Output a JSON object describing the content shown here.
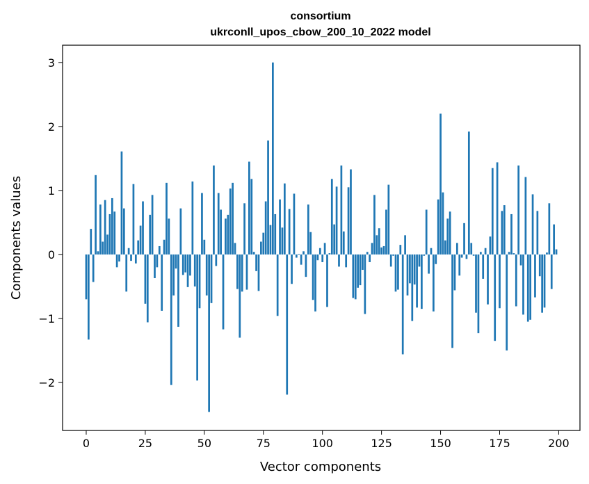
{
  "chart_data": {
    "type": "bar",
    "title_line1": "consortium",
    "title_line2": "ukrconll_upos_cbow_200_10_2022 model",
    "xlabel": "Vector components",
    "ylabel": "Components values",
    "xlim": [
      -10,
      209
    ],
    "ylim": [
      -2.75,
      3.27
    ],
    "xticks": [
      0,
      25,
      50,
      75,
      100,
      125,
      150,
      175,
      200
    ],
    "xtick_labels": [
      "0",
      "25",
      "50",
      "75",
      "100",
      "125",
      "150",
      "175",
      "200"
    ],
    "yticks": [
      -2,
      -1,
      0,
      1,
      2,
      3
    ],
    "ytick_labels": [
      "−2",
      "−1",
      "0",
      "1",
      "2",
      "3"
    ],
    "grid": false,
    "bar_color": "#1f77b4",
    "x": [
      0,
      1,
      2,
      3,
      4,
      5,
      6,
      7,
      8,
      9,
      10,
      11,
      12,
      13,
      14,
      15,
      16,
      17,
      18,
      19,
      20,
      21,
      22,
      23,
      24,
      25,
      26,
      27,
      28,
      29,
      30,
      31,
      32,
      33,
      34,
      35,
      36,
      37,
      38,
      39,
      40,
      41,
      42,
      43,
      44,
      45,
      46,
      47,
      48,
      49,
      50,
      51,
      52,
      53,
      54,
      55,
      56,
      57,
      58,
      59,
      60,
      61,
      62,
      63,
      64,
      65,
      66,
      67,
      68,
      69,
      70,
      71,
      72,
      73,
      74,
      75,
      76,
      77,
      78,
      79,
      80,
      81,
      82,
      83,
      84,
      85,
      86,
      87,
      88,
      89,
      90,
      91,
      92,
      93,
      94,
      95,
      96,
      97,
      98,
      99,
      100,
      101,
      102,
      103,
      104,
      105,
      106,
      107,
      108,
      109,
      110,
      111,
      112,
      113,
      114,
      115,
      116,
      117,
      118,
      119,
      120,
      121,
      122,
      123,
      124,
      125,
      126,
      127,
      128,
      129,
      130,
      131,
      132,
      133,
      134,
      135,
      136,
      137,
      138,
      139,
      140,
      141,
      142,
      143,
      144,
      145,
      146,
      147,
      148,
      149,
      150,
      151,
      152,
      153,
      154,
      155,
      156,
      157,
      158,
      159,
      160,
      161,
      162,
      163,
      164,
      165,
      166,
      167,
      168,
      169,
      170,
      171,
      172,
      173,
      174,
      175,
      176,
      177,
      178,
      179,
      180,
      181,
      182,
      183,
      184,
      185,
      186,
      187,
      188,
      189,
      190,
      191,
      192,
      193,
      194,
      195,
      196,
      197,
      198,
      199
    ],
    "values": [
      -0.7,
      -1.33,
      0.4,
      -0.43,
      1.24,
      0.05,
      0.78,
      0.2,
      0.85,
      0.31,
      0.63,
      0.88,
      0.67,
      -0.2,
      -0.11,
      1.61,
      0.72,
      -0.58,
      0.1,
      -0.1,
      1.1,
      -0.14,
      0.22,
      0.45,
      0.83,
      -0.77,
      -1.06,
      0.62,
      0.93,
      -0.37,
      -0.2,
      0.13,
      -0.88,
      0.23,
      1.12,
      0.56,
      -2.04,
      -0.64,
      -0.22,
      -1.13,
      0.72,
      -0.32,
      -0.28,
      -0.51,
      -0.33,
      1.14,
      -0.5,
      -1.97,
      -0.84,
      0.96,
      0.23,
      -0.64,
      -2.46,
      -0.76,
      1.39,
      -0.18,
      0.96,
      0.7,
      -1.17,
      0.56,
      0.62,
      1.03,
      1.12,
      0.18,
      -0.54,
      -1.3,
      -0.58,
      0.8,
      -0.55,
      1.45,
      1.18,
      0.04,
      -0.26,
      -0.57,
      0.2,
      0.34,
      0.83,
      1.78,
      0.46,
      3.0,
      0.63,
      -0.96,
      0.86,
      0.42,
      1.11,
      -2.19,
      0.71,
      -0.46,
      0.95,
      -0.05,
      0.01,
      -0.16,
      0.05,
      -0.35,
      0.78,
      0.35,
      -0.71,
      -0.89,
      -0.09,
      0.1,
      -0.12,
      0.18,
      -0.82,
      0.02,
      1.18,
      0.47,
      1.06,
      -0.19,
      1.39,
      0.36,
      -0.2,
      1.05,
      1.33,
      -0.68,
      -0.7,
      -0.52,
      -0.48,
      -0.24,
      -0.93,
      0.04,
      -0.12,
      0.18,
      0.93,
      0.3,
      0.41,
      0.11,
      0.13,
      0.7,
      1.09,
      -0.19,
      -0.02,
      -0.58,
      -0.55,
      0.15,
      -1.56,
      0.3,
      -0.64,
      -0.45,
      -1.04,
      -0.47,
      -0.83,
      -0.19,
      -0.85,
      -0.02,
      0.7,
      -0.3,
      0.1,
      -0.89,
      -0.15,
      0.86,
      2.2,
      0.97,
      0.22,
      0.56,
      0.67,
      -1.46,
      -0.56,
      0.18,
      -0.33,
      -0.05,
      0.49,
      -0.07,
      1.92,
      0.18,
      -0.02,
      -0.91,
      -1.23,
      0.04,
      -0.38,
      0.1,
      -0.78,
      0.28,
      1.35,
      -1.35,
      1.44,
      -0.84,
      0.68,
      0.77,
      -1.5,
      0.04,
      0.63,
      0.02,
      -0.81,
      1.39,
      -0.17,
      -0.94,
      1.21,
      -1.05,
      -1.02,
      0.94,
      -0.67,
      0.68,
      -0.34,
      -0.91,
      -0.83,
      0.03,
      0.8,
      -0.54,
      0.47,
      0.08
    ]
  }
}
